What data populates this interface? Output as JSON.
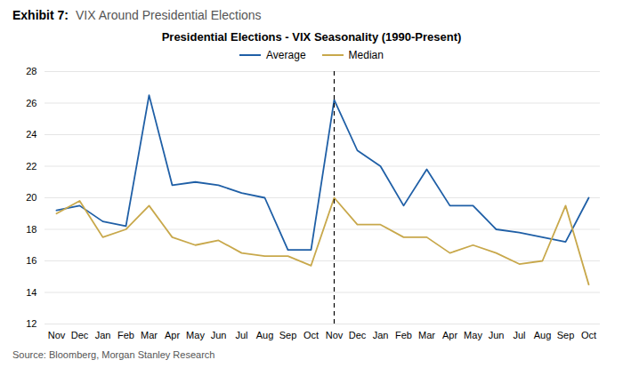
{
  "chart_data": {
    "type": "line",
    "exhibit_label": "Exhibit 7:",
    "exhibit_title": "VIX Around Presidential Elections",
    "title": "Presidential Elections - VIX Seasonality (1990-Present)",
    "source": "Source: Bloomberg, Morgan Stanley Research",
    "categories": [
      "Nov",
      "Dec",
      "Jan",
      "Feb",
      "Mar",
      "Apr",
      "May",
      "Jun",
      "Jul",
      "Aug",
      "Sep",
      "Oct",
      "Nov",
      "Dec",
      "Jan",
      "Feb",
      "Mar",
      "Apr",
      "May",
      "Jun",
      "Jul",
      "Aug",
      "Sep",
      "Oct"
    ],
    "series": [
      {
        "name": "Average",
        "color": "#1f5fa6",
        "values": [
          19.2,
          19.5,
          18.5,
          18.2,
          26.5,
          20.8,
          21.0,
          20.8,
          20.3,
          20.0,
          16.7,
          16.7,
          26.2,
          23.0,
          22.0,
          19.5,
          21.8,
          19.5,
          19.5,
          18.0,
          17.8,
          17.5,
          17.2,
          20.0
        ]
      },
      {
        "name": "Median",
        "color": "#c8a84b",
        "values": [
          19.0,
          19.8,
          17.5,
          18.0,
          19.5,
          17.5,
          17.0,
          17.3,
          16.5,
          16.3,
          16.3,
          15.7,
          20.0,
          18.3,
          18.3,
          17.5,
          17.5,
          16.5,
          17.0,
          16.5,
          15.8,
          16.0,
          19.5,
          14.5
        ]
      }
    ],
    "annotations": [
      {
        "type": "vline",
        "x": 12,
        "line_style": "dashed",
        "color": "#000000"
      }
    ],
    "ylim": [
      12,
      28
    ],
    "yticks": [
      12,
      14,
      16,
      18,
      20,
      22,
      24,
      26,
      28
    ],
    "grid": true,
    "legend": "top"
  }
}
